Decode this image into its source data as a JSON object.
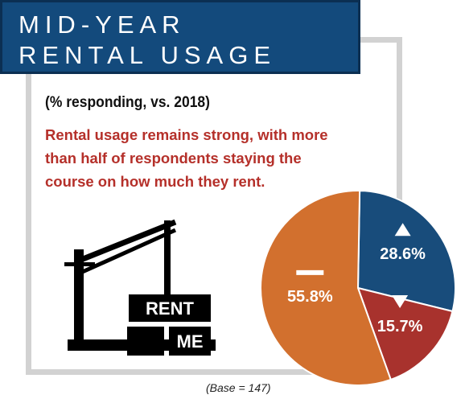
{
  "header": {
    "title_line1": "MID-YEAR",
    "title_line2": "RENTAL USAGE"
  },
  "subtitle": "(% responding, vs. 2018)",
  "description": "Rental usage remains strong, with more than half of respondents staying the course on how much they rent.",
  "base_note": "(Base = 147)",
  "sign": {
    "word1": "RENT",
    "word2": "ME"
  },
  "chart_data": {
    "type": "pie",
    "slices": [
      {
        "label": "28.6%",
        "value": 28.6,
        "icon": "triangle-up-icon",
        "color": "#184c7b"
      },
      {
        "label": "15.7%",
        "value": 15.7,
        "icon": "triangle-down-icon",
        "color": "#a8322d"
      },
      {
        "label": "55.8%",
        "value": 55.8,
        "icon": "dash-icon",
        "color": "#d2702e"
      }
    ],
    "start_angle_deg": 1
  },
  "colors": {
    "banner": "#134a7c",
    "accent_text": "#b5302a",
    "frame": "#d2d2d2"
  }
}
